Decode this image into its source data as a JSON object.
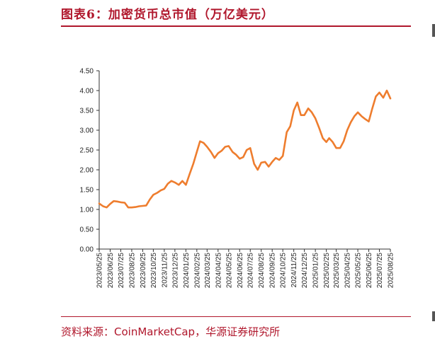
{
  "title": "图表6：加密货币总市值（万亿美元）",
  "source": "资料来源：CoinMarketCap，华源证券研究所",
  "colors": {
    "accent": "#b0172c",
    "line": "#ee7d2e",
    "axis": "#333333"
  },
  "chart_data": {
    "type": "line",
    "title": "",
    "xlabel": "",
    "ylabel": "",
    "ylim": [
      0,
      4.5
    ],
    "yticks": [
      "0.00",
      "0.50",
      "1.00",
      "1.50",
      "2.00",
      "2.50",
      "3.00",
      "3.50",
      "4.00",
      "4.50"
    ],
    "xticks": [
      "2023/05/25",
      "2023/06/25",
      "2023/07/25",
      "2023/08/25",
      "2023/09/25",
      "2023/10/25",
      "2023/11/25",
      "2023/12/25",
      "2024/01/25",
      "2024/02/25",
      "2024/03/25",
      "2024/04/25",
      "2024/05/25",
      "2024/06/25",
      "2024/07/25",
      "2024/08/25",
      "2024/09/25",
      "2024/10/25",
      "2024/11/25",
      "2024/12/25",
      "2025/01/25",
      "2025/02/25",
      "2025/03/25",
      "2025/04/25",
      "2025/05/25",
      "2025/06/25",
      "2025/07/25",
      "2025/08/25"
    ],
    "grid": false,
    "legend": "none",
    "series": [
      {
        "x": [
          "2023/05/25",
          "2023/06/05",
          "2023/06/15",
          "2023/06/25",
          "2023/07/05",
          "2023/07/15",
          "2023/07/25",
          "2023/08/05",
          "2023/08/15",
          "2023/08/25",
          "2023/09/05",
          "2023/09/15",
          "2023/09/25",
          "2023/10/05",
          "2023/10/15",
          "2023/10/25",
          "2023/11/05",
          "2023/11/15",
          "2023/11/25",
          "2023/12/05",
          "2023/12/15",
          "2023/12/25",
          "2024/01/05",
          "2024/01/15",
          "2024/01/25",
          "2024/02/05",
          "2024/02/15",
          "2024/02/25",
          "2024/03/05",
          "2024/03/15",
          "2024/03/25",
          "2024/04/05",
          "2024/04/15",
          "2024/04/25",
          "2024/05/05",
          "2024/05/15",
          "2024/05/25",
          "2024/06/05",
          "2024/06/15",
          "2024/06/25",
          "2024/07/05",
          "2024/07/15",
          "2024/07/25",
          "2024/08/05",
          "2024/08/15",
          "2024/08/25",
          "2024/09/05",
          "2024/09/15",
          "2024/09/25",
          "2024/10/05",
          "2024/10/15",
          "2024/10/25",
          "2024/11/05",
          "2024/11/15",
          "2024/11/25",
          "2024/12/05",
          "2024/12/15",
          "2024/12/25",
          "2025/01/05",
          "2025/01/15",
          "2025/01/25",
          "2025/02/05",
          "2025/02/15",
          "2025/02/25",
          "2025/03/05",
          "2025/03/15",
          "2025/03/25",
          "2025/04/05",
          "2025/04/15",
          "2025/04/25",
          "2025/05/05",
          "2025/05/15",
          "2025/05/25",
          "2025/06/05",
          "2025/06/15",
          "2025/06/25",
          "2025/07/05",
          "2025/07/15",
          "2025/07/25",
          "2025/08/05",
          "2025/08/15",
          "2025/08/25"
        ],
        "y": [
          1.15,
          1.08,
          1.05,
          1.14,
          1.21,
          1.2,
          1.18,
          1.17,
          1.05,
          1.05,
          1.06,
          1.08,
          1.09,
          1.1,
          1.25,
          1.37,
          1.42,
          1.48,
          1.52,
          1.65,
          1.72,
          1.68,
          1.62,
          1.72,
          1.62,
          1.9,
          2.15,
          2.45,
          2.72,
          2.68,
          2.58,
          2.45,
          2.3,
          2.42,
          2.48,
          2.58,
          2.6,
          2.45,
          2.38,
          2.28,
          2.32,
          2.5,
          2.55,
          2.15,
          2.0,
          2.18,
          2.2,
          2.08,
          2.2,
          2.3,
          2.25,
          2.35,
          2.95,
          3.1,
          3.5,
          3.7,
          3.38,
          3.38,
          3.55,
          3.45,
          3.3,
          3.05,
          2.8,
          2.7,
          2.8,
          2.7,
          2.55,
          2.55,
          2.72,
          3.0,
          3.2,
          3.35,
          3.45,
          3.35,
          3.28,
          3.22,
          3.55,
          3.85,
          3.95,
          3.82,
          4.0,
          3.8
        ]
      }
    ]
  }
}
